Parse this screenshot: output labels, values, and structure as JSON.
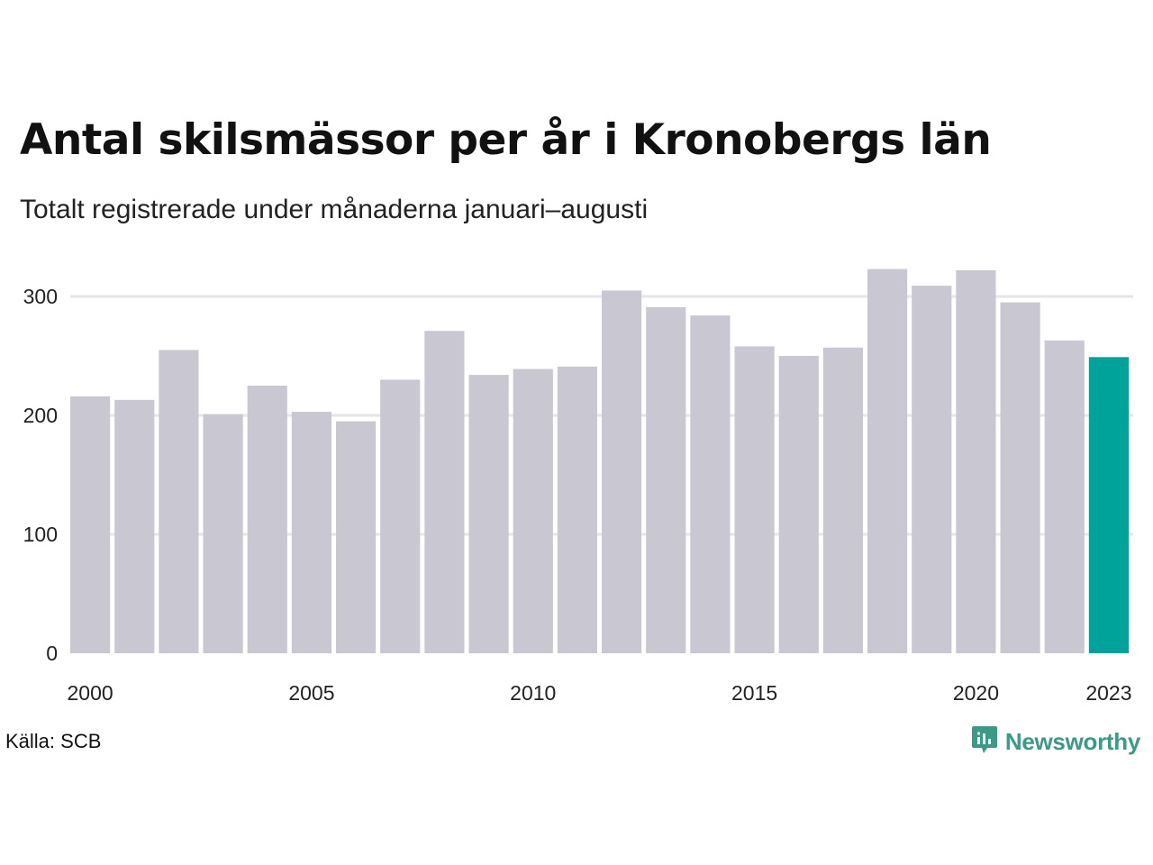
{
  "title": "Antal skilsmässor per år i Kronobergs län",
  "subtitle": "Totalt registrerade under månaderna januari–augusti",
  "source": "Källa: SCB",
  "brand": {
    "name": "Newsworthy",
    "icon": "newsworthy-logo-icon",
    "color": "#3a9a85"
  },
  "colors": {
    "bar": "#c8c7d2",
    "highlight": "#00a39a",
    "grid": "#e6e6ea"
  },
  "chart_data": {
    "type": "bar",
    "categories": [
      "2000",
      "2001",
      "2002",
      "2003",
      "2004",
      "2005",
      "2006",
      "2007",
      "2008",
      "2009",
      "2010",
      "2011",
      "2012",
      "2013",
      "2014",
      "2015",
      "2016",
      "2017",
      "2018",
      "2019",
      "2020",
      "2021",
      "2022",
      "2023"
    ],
    "values": [
      216,
      213,
      255,
      201,
      225,
      203,
      195,
      230,
      271,
      234,
      239,
      241,
      305,
      291,
      284,
      258,
      250,
      257,
      323,
      309,
      322,
      295,
      263,
      249
    ],
    "highlight_category": "2023",
    "ylim": [
      0,
      330
    ],
    "yticks": [
      0,
      100,
      200,
      300
    ],
    "xtick_labels": [
      "2000",
      "2005",
      "2010",
      "2015",
      "2020",
      "2023"
    ],
    "grid": true,
    "legend": false
  }
}
